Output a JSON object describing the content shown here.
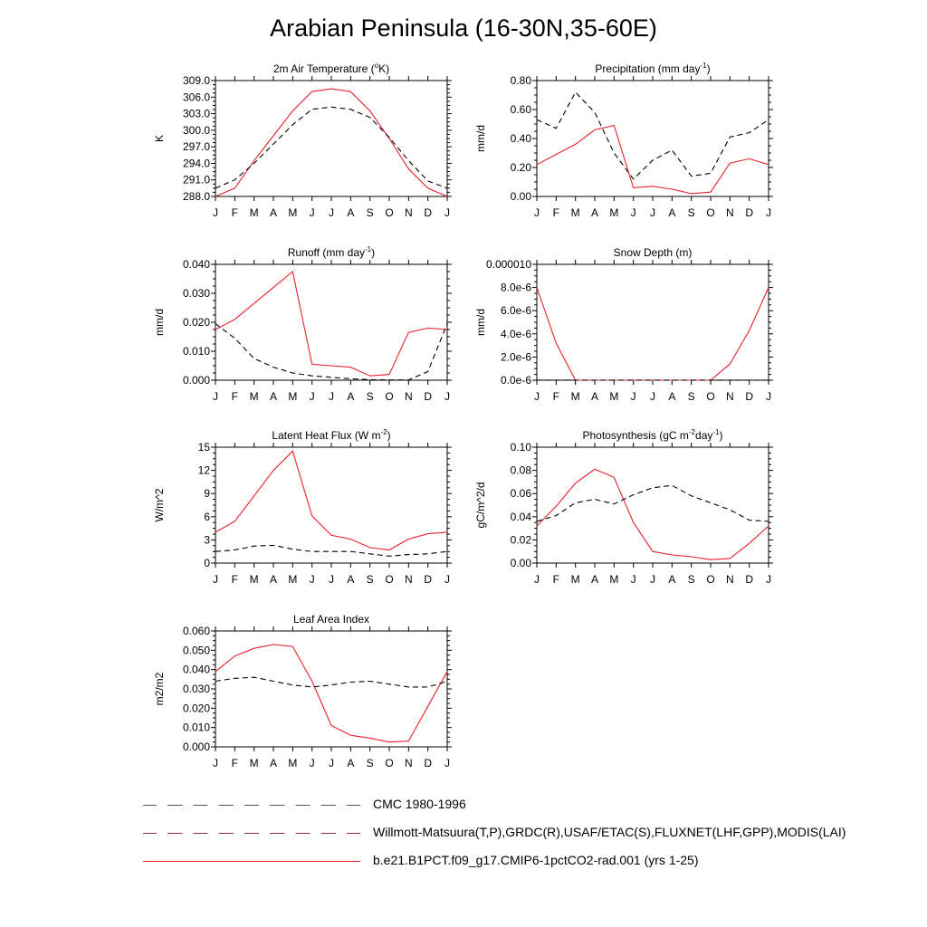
{
  "title": "Arabian Peninsula (16-30N,35-60E)",
  "colors": {
    "model": "#e8202a",
    "obs": "#000000"
  },
  "legend": [
    {
      "label": "CMC 1980-1996",
      "style": "dash-long"
    },
    {
      "label": "Willmott-Matsuura(T,P),GRDC(R),USAF/ETAC(S),FLUXNET(LHF,GPP),MODIS(LAI)",
      "style": "dash-long"
    },
    {
      "label": "b.e21.B1PCT.f09_g17.CMIP6-1pctCO2-rad.001 (yrs 1-25)",
      "style": "solid"
    }
  ],
  "chart_data": [
    {
      "type": "line",
      "title": "2m Air Temperature (oK)",
      "title_parts": [
        "2m Air Temperature (",
        "o",
        "K)"
      ],
      "ylabel": "K",
      "ylim": [
        288.0,
        309.0
      ],
      "yticks": [
        "309.0",
        "306.0",
        "303.0",
        "300.0",
        "297.0",
        "294.0",
        "291.0",
        "288.0"
      ],
      "ytick_values": [
        309,
        306,
        303,
        300,
        297,
        294,
        291,
        288
      ],
      "categories": [
        "J",
        "F",
        "M",
        "A",
        "M",
        "J",
        "J",
        "A",
        "S",
        "O",
        "N",
        "D",
        "J"
      ],
      "series": [
        {
          "role": "model",
          "values": [
            288.0,
            289.5,
            294.5,
            299.0,
            303.5,
            307.0,
            307.5,
            307.0,
            303.5,
            298.5,
            293.0,
            289.5,
            288.0
          ]
        },
        {
          "role": "obs",
          "values": [
            289.5,
            291.0,
            294.0,
            297.5,
            301.0,
            303.8,
            304.2,
            303.8,
            302.3,
            298.7,
            294.5,
            290.8,
            289.5
          ]
        }
      ]
    },
    {
      "type": "line",
      "title": "Precipitation (mm day-1)",
      "title_parts": [
        "Precipitation (mm day",
        "-1",
        ")"
      ],
      "ylabel": "mm/d",
      "ylim": [
        0,
        0.8
      ],
      "yticks": [
        "0.80",
        "0.60",
        "0.40",
        "0.20",
        "0.00"
      ],
      "ytick_values": [
        0.8,
        0.6,
        0.4,
        0.2,
        0.0
      ],
      "categories": [
        "J",
        "F",
        "M",
        "A",
        "M",
        "J",
        "J",
        "A",
        "S",
        "O",
        "N",
        "D",
        "J"
      ],
      "series": [
        {
          "role": "model",
          "values": [
            0.22,
            0.29,
            0.36,
            0.46,
            0.49,
            0.06,
            0.07,
            0.05,
            0.02,
            0.03,
            0.23,
            0.26,
            0.22
          ]
        },
        {
          "role": "obs",
          "values": [
            0.53,
            0.47,
            0.72,
            0.58,
            0.3,
            0.12,
            0.25,
            0.32,
            0.14,
            0.16,
            0.41,
            0.44,
            0.53
          ]
        }
      ]
    },
    {
      "type": "line",
      "title": "Runoff (mm day-1)",
      "title_parts": [
        "Runoff (mm day",
        "-1",
        ")"
      ],
      "ylabel": "mm/d",
      "ylim": [
        0,
        0.04
      ],
      "yticks": [
        "0.040",
        "0.030",
        "0.020",
        "0.010",
        "0.000"
      ],
      "ytick_values": [
        0.04,
        0.03,
        0.02,
        0.01,
        0.0
      ],
      "categories": [
        "J",
        "F",
        "M",
        "A",
        "M",
        "J",
        "J",
        "A",
        "S",
        "O",
        "N",
        "D",
        "J"
      ],
      "series": [
        {
          "role": "model",
          "values": [
            0.0175,
            0.021,
            0.0265,
            0.032,
            0.0375,
            0.0055,
            0.005,
            0.0045,
            0.0015,
            0.002,
            0.0165,
            0.018,
            0.0175
          ]
        },
        {
          "role": "obs",
          "values": [
            0.0195,
            0.0145,
            0.0075,
            0.0045,
            0.0025,
            0.0015,
            0.001,
            0.0005,
            0.0002,
            0.0001,
            0.0001,
            0.003,
            0.0195
          ]
        }
      ]
    },
    {
      "type": "line",
      "title": "Snow Depth (m)",
      "title_parts": [
        "Snow Depth (m)"
      ],
      "ylabel": "mm/d",
      "ylim": [
        0,
        1e-05
      ],
      "yticks": [
        "0.000010",
        "8.0e-6",
        "6.0e-6",
        "4.0e-6",
        "2.0e-6",
        "0.0e-6"
      ],
      "ytick_values": [
        1e-05,
        8e-06,
        6e-06,
        4e-06,
        2e-06,
        0.0
      ],
      "categories": [
        "J",
        "F",
        "M",
        "A",
        "M",
        "J",
        "J",
        "A",
        "S",
        "O",
        "N",
        "D",
        "J"
      ],
      "series": [
        {
          "role": "model",
          "values": [
            8e-06,
            3.2e-06,
            0.0,
            0.0,
            0.0,
            0.0,
            0.0,
            0.0,
            0.0,
            0.0,
            1.4e-06,
            4.3e-06,
            8e-06
          ]
        },
        {
          "role": "obs",
          "values": [
            1e-08,
            1e-08,
            1e-08,
            1e-08,
            1e-08,
            1e-08,
            1e-08,
            1e-08,
            1e-08,
            1e-08,
            1e-08,
            1e-08,
            1e-08
          ]
        }
      ]
    },
    {
      "type": "line",
      "title": "Latent Heat Flux (W m-2)",
      "title_parts": [
        "Latent Heat Flux (W m",
        "-2",
        ")"
      ],
      "ylabel": "W/m^2",
      "ylim": [
        0,
        15
      ],
      "yticks": [
        "15",
        "12",
        "9",
        "6",
        "3",
        "0"
      ],
      "ytick_values": [
        15,
        12,
        9,
        6,
        3,
        0
      ],
      "categories": [
        "J",
        "F",
        "M",
        "A",
        "M",
        "J",
        "J",
        "A",
        "S",
        "O",
        "N",
        "D",
        "J"
      ],
      "series": [
        {
          "role": "model",
          "values": [
            4.0,
            5.4,
            8.7,
            12.0,
            14.5,
            6.1,
            3.6,
            3.1,
            2.0,
            1.7,
            3.1,
            3.8,
            4.0
          ]
        },
        {
          "role": "obs",
          "values": [
            1.5,
            1.7,
            2.2,
            2.3,
            1.8,
            1.5,
            1.5,
            1.5,
            1.2,
            0.9,
            1.1,
            1.2,
            1.5
          ]
        }
      ]
    },
    {
      "type": "line",
      "title": "Photosynthesis (gC m-2day-1)",
      "title_parts": [
        "Photosynthesis (gC m",
        "-2",
        "day",
        "-1",
        ")"
      ],
      "ylabel": "gC/m^2/d",
      "ylim": [
        0,
        0.1
      ],
      "yticks": [
        "0.10",
        "0.08",
        "0.06",
        "0.04",
        "0.02",
        "0.00"
      ],
      "ytick_values": [
        0.1,
        0.08,
        0.06,
        0.04,
        0.02,
        0.0
      ],
      "categories": [
        "J",
        "F",
        "M",
        "A",
        "M",
        "J",
        "J",
        "A",
        "S",
        "O",
        "N",
        "D",
        "J"
      ],
      "series": [
        {
          "role": "model",
          "values": [
            0.032,
            0.049,
            0.069,
            0.081,
            0.074,
            0.035,
            0.01,
            0.007,
            0.0055,
            0.003,
            0.004,
            0.017,
            0.032
          ]
        },
        {
          "role": "obs",
          "values": [
            0.036,
            0.041,
            0.052,
            0.055,
            0.051,
            0.059,
            0.065,
            0.067,
            0.058,
            0.052,
            0.046,
            0.037,
            0.036
          ]
        }
      ]
    },
    {
      "type": "line",
      "title": "Leaf Area Index",
      "title_parts": [
        "Leaf Area Index"
      ],
      "ylabel": "m2/m2",
      "ylim": [
        0,
        0.06
      ],
      "yticks": [
        "0.060",
        "0.050",
        "0.040",
        "0.030",
        "0.020",
        "0.010",
        "0.000"
      ],
      "ytick_values": [
        0.06,
        0.05,
        0.04,
        0.03,
        0.02,
        0.01,
        0.0
      ],
      "categories": [
        "J",
        "F",
        "M",
        "A",
        "M",
        "J",
        "J",
        "A",
        "S",
        "O",
        "N",
        "D",
        "J"
      ],
      "series": [
        {
          "role": "model",
          "values": [
            0.039,
            0.047,
            0.051,
            0.053,
            0.052,
            0.034,
            0.011,
            0.006,
            0.0045,
            0.0025,
            0.003,
            0.021,
            0.039
          ]
        },
        {
          "role": "obs",
          "values": [
            0.034,
            0.0355,
            0.036,
            0.034,
            0.032,
            0.031,
            0.032,
            0.0335,
            0.034,
            0.0325,
            0.031,
            0.031,
            0.034
          ]
        }
      ]
    }
  ]
}
